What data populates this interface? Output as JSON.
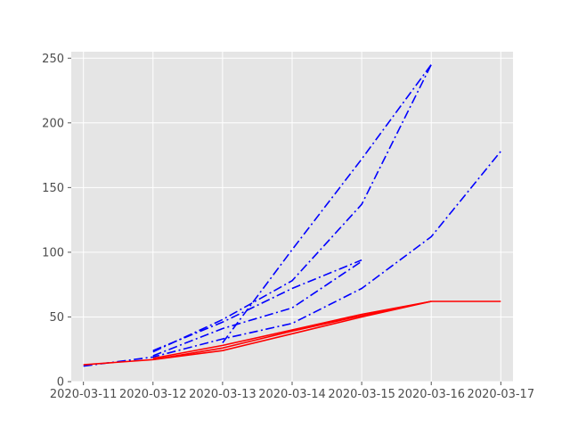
{
  "chart_data": {
    "type": "line",
    "title": "",
    "xlabel": "",
    "ylabel": "",
    "x_ticks": [
      "2020-03-11",
      "2020-03-12",
      "2020-03-13",
      "2020-03-14",
      "2020-03-15",
      "2020-03-16",
      "2020-03-17"
    ],
    "y_ticks": [
      0,
      50,
      100,
      150,
      200,
      250
    ],
    "xlim": [
      "2020-03-10T19:48",
      "2020-03-17T04:12"
    ],
    "ylim": [
      0,
      255
    ],
    "grid": true,
    "style": "ggplot",
    "series": [
      {
        "color": "#0000ff",
        "linestyle": "dash-dot",
        "points": [
          [
            "2020-03-11",
            12
          ],
          [
            "2020-03-12",
            19
          ],
          [
            "2020-03-13",
            33
          ],
          [
            "2020-03-14",
            45
          ],
          [
            "2020-03-15",
            72
          ],
          [
            "2020-03-16",
            112
          ],
          [
            "2020-03-17",
            178
          ]
        ]
      },
      {
        "color": "#0000ff",
        "linestyle": "dash-dot",
        "points": [
          [
            "2020-03-12",
            24
          ],
          [
            "2020-03-13",
            46
          ],
          [
            "2020-03-14",
            72
          ],
          [
            "2020-03-15",
            94
          ]
        ]
      },
      {
        "color": "#0000ff",
        "linestyle": "dash-dot",
        "points": [
          [
            "2020-03-12",
            23
          ],
          [
            "2020-03-13",
            48
          ],
          [
            "2020-03-14",
            78
          ],
          [
            "2020-03-15",
            137
          ],
          [
            "2020-03-16",
            245
          ]
        ]
      },
      {
        "color": "#0000ff",
        "linestyle": "dash-dot",
        "points": [
          [
            "2020-03-12",
            20
          ],
          [
            "2020-03-13",
            41
          ],
          [
            "2020-03-14",
            57
          ],
          [
            "2020-03-15",
            93
          ]
        ]
      },
      {
        "color": "#0000ff",
        "linestyle": "dash-dot",
        "points": [
          [
            "2020-03-13",
            30
          ],
          [
            "2020-03-14",
            102
          ],
          [
            "2020-03-15",
            172
          ],
          [
            "2020-03-16",
            245
          ]
        ]
      },
      {
        "color": "#ff0000",
        "linestyle": "solid",
        "points": [
          [
            "2020-03-11",
            13
          ],
          [
            "2020-03-12",
            17
          ],
          [
            "2020-03-13",
            24
          ],
          [
            "2020-03-14",
            37
          ],
          [
            "2020-03-15",
            50
          ],
          [
            "2020-03-16",
            62
          ],
          [
            "2020-03-17",
            62
          ]
        ]
      },
      {
        "color": "#ff0000",
        "linestyle": "solid",
        "points": [
          [
            "2020-03-12",
            17
          ],
          [
            "2020-03-13",
            26
          ],
          [
            "2020-03-14",
            39
          ],
          [
            "2020-03-15",
            51
          ],
          [
            "2020-03-16",
            62
          ]
        ]
      },
      {
        "color": "#ff0000",
        "linestyle": "solid",
        "points": [
          [
            "2020-03-12",
            18
          ],
          [
            "2020-03-13",
            28
          ],
          [
            "2020-03-14",
            40
          ],
          [
            "2020-03-15",
            52
          ],
          [
            "2020-03-16",
            62
          ]
        ]
      }
    ]
  }
}
